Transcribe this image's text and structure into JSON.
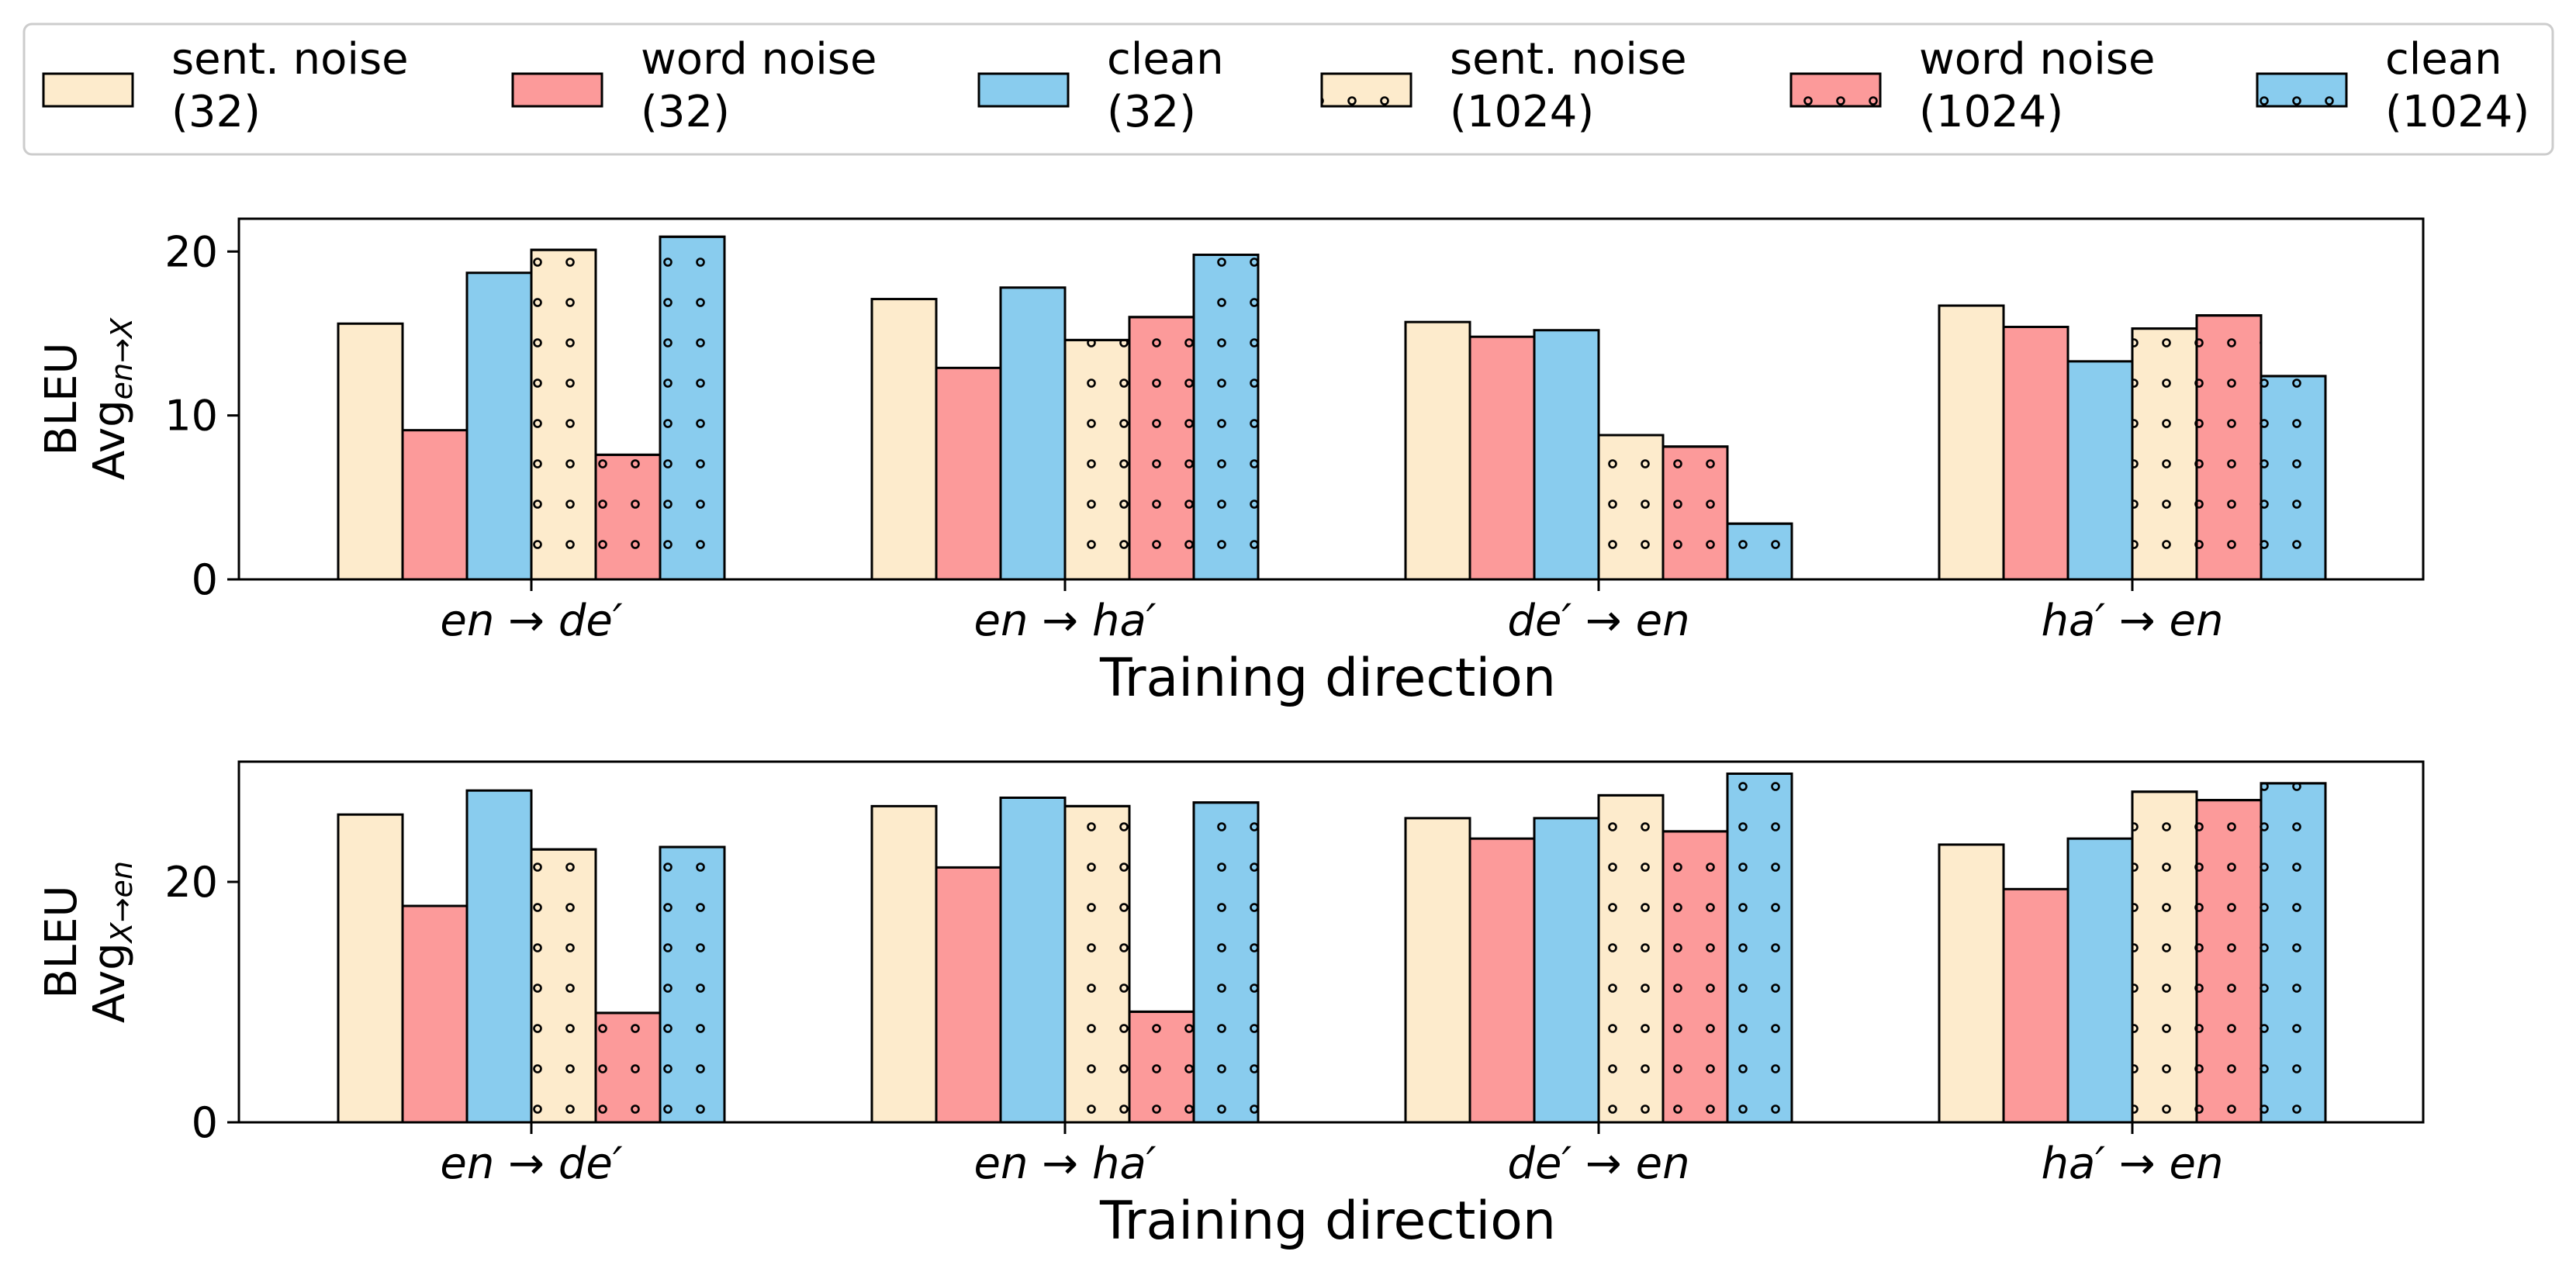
{
  "chart_data": [
    {
      "type": "bar",
      "xlabel": "Training direction",
      "ylabel_line1": "BLEU",
      "ylabel_line2_main": "Avg",
      "ylabel_line2_sub": "en→X",
      "ylim": [
        0,
        22
      ],
      "yticks": [
        0,
        10,
        20
      ],
      "categories": [
        "en → de′",
        "en → ha′",
        "de′ → en",
        "ha′ → en"
      ],
      "series": [
        {
          "name": "sent. noise (32)",
          "values": [
            15.6,
            17.1,
            15.7,
            16.7
          ]
        },
        {
          "name": "word noise (32)",
          "values": [
            9.1,
            12.9,
            14.8,
            15.4
          ]
        },
        {
          "name": "clean (32)",
          "values": [
            18.7,
            17.8,
            15.2,
            13.3
          ]
        },
        {
          "name": "sent. noise (1024)",
          "values": [
            20.1,
            14.6,
            8.8,
            15.3
          ]
        },
        {
          "name": "word noise (1024)",
          "values": [
            7.6,
            16.0,
            8.1,
            16.1
          ]
        },
        {
          "name": "clean (1024)",
          "values": [
            20.9,
            19.8,
            3.4,
            12.4
          ]
        }
      ],
      "legend": "top"
    },
    {
      "type": "bar",
      "xlabel": "Training direction",
      "ylabel_line1": "BLEU",
      "ylabel_line2_main": "Avg",
      "ylabel_line2_sub": "X→en",
      "ylim": [
        0,
        30
      ],
      "yticks": [
        0,
        20
      ],
      "categories": [
        "en → de′",
        "en → ha′",
        "de′ → en",
        "ha′ → en"
      ],
      "series": [
        {
          "name": "sent. noise (32)",
          "values": [
            25.6,
            26.3,
            25.3,
            23.1
          ]
        },
        {
          "name": "word noise (32)",
          "values": [
            18.0,
            21.2,
            23.6,
            19.4
          ]
        },
        {
          "name": "clean (32)",
          "values": [
            27.6,
            27.0,
            25.3,
            23.6
          ]
        },
        {
          "name": "sent. noise (1024)",
          "values": [
            22.7,
            26.3,
            27.2,
            27.5
          ]
        },
        {
          "name": "word noise (1024)",
          "values": [
            9.1,
            9.2,
            24.2,
            26.8
          ]
        },
        {
          "name": "clean (1024)",
          "values": [
            22.9,
            26.6,
            29.0,
            28.2
          ]
        }
      ],
      "legend": "top"
    }
  ],
  "legend": {
    "entries": [
      {
        "line1": "sent. noise",
        "line2": "(32)",
        "color": "#FDEBCC",
        "hatch": false
      },
      {
        "line1": "word noise",
        "line2": "(32)",
        "color": "#FC9A9A",
        "hatch": false
      },
      {
        "line1": "clean",
        "line2": "(32)",
        "color": "#89CCEE",
        "hatch": false
      },
      {
        "line1": "sent. noise",
        "line2": "(1024)",
        "color": "#FDEBCC",
        "hatch": true
      },
      {
        "line1": "word noise",
        "line2": "(1024)",
        "color": "#FC9A9A",
        "hatch": true
      },
      {
        "line1": "clean",
        "line2": "(1024)",
        "color": "#89CCEE",
        "hatch": true
      }
    ]
  }
}
